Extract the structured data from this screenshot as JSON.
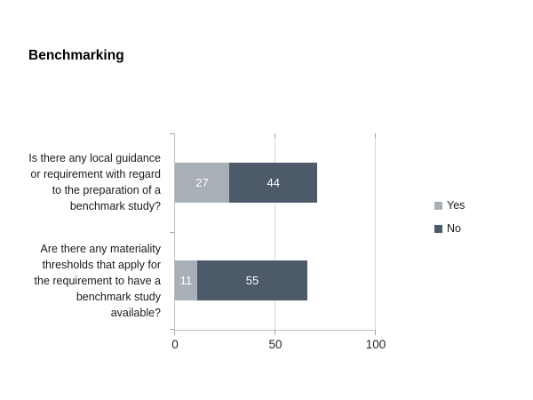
{
  "chart_data": {
    "type": "bar",
    "orientation": "horizontal",
    "stacked": true,
    "title": "Benchmarking",
    "categories": [
      "Is there any local guidance or requirement with regard to the preparation of a benchmark study?",
      "Are there any materiality thresholds that apply for the requirement to have a benchmark study available?"
    ],
    "series": [
      {
        "name": "Yes",
        "color": "#a9afb6",
        "values": [
          27,
          11
        ]
      },
      {
        "name": "No",
        "color": "#4c5a69",
        "values": [
          44,
          55
        ]
      }
    ],
    "xlim": [
      0,
      100
    ],
    "x_ticks": [
      0,
      50,
      100
    ],
    "x_tick_labels": [
      "0",
      "50",
      "100"
    ],
    "grid": true,
    "legend_position": "right",
    "value_label_color": "#ffffff",
    "axis_color": "#bfbfbf",
    "gridline_color": "#d9d9d9"
  }
}
